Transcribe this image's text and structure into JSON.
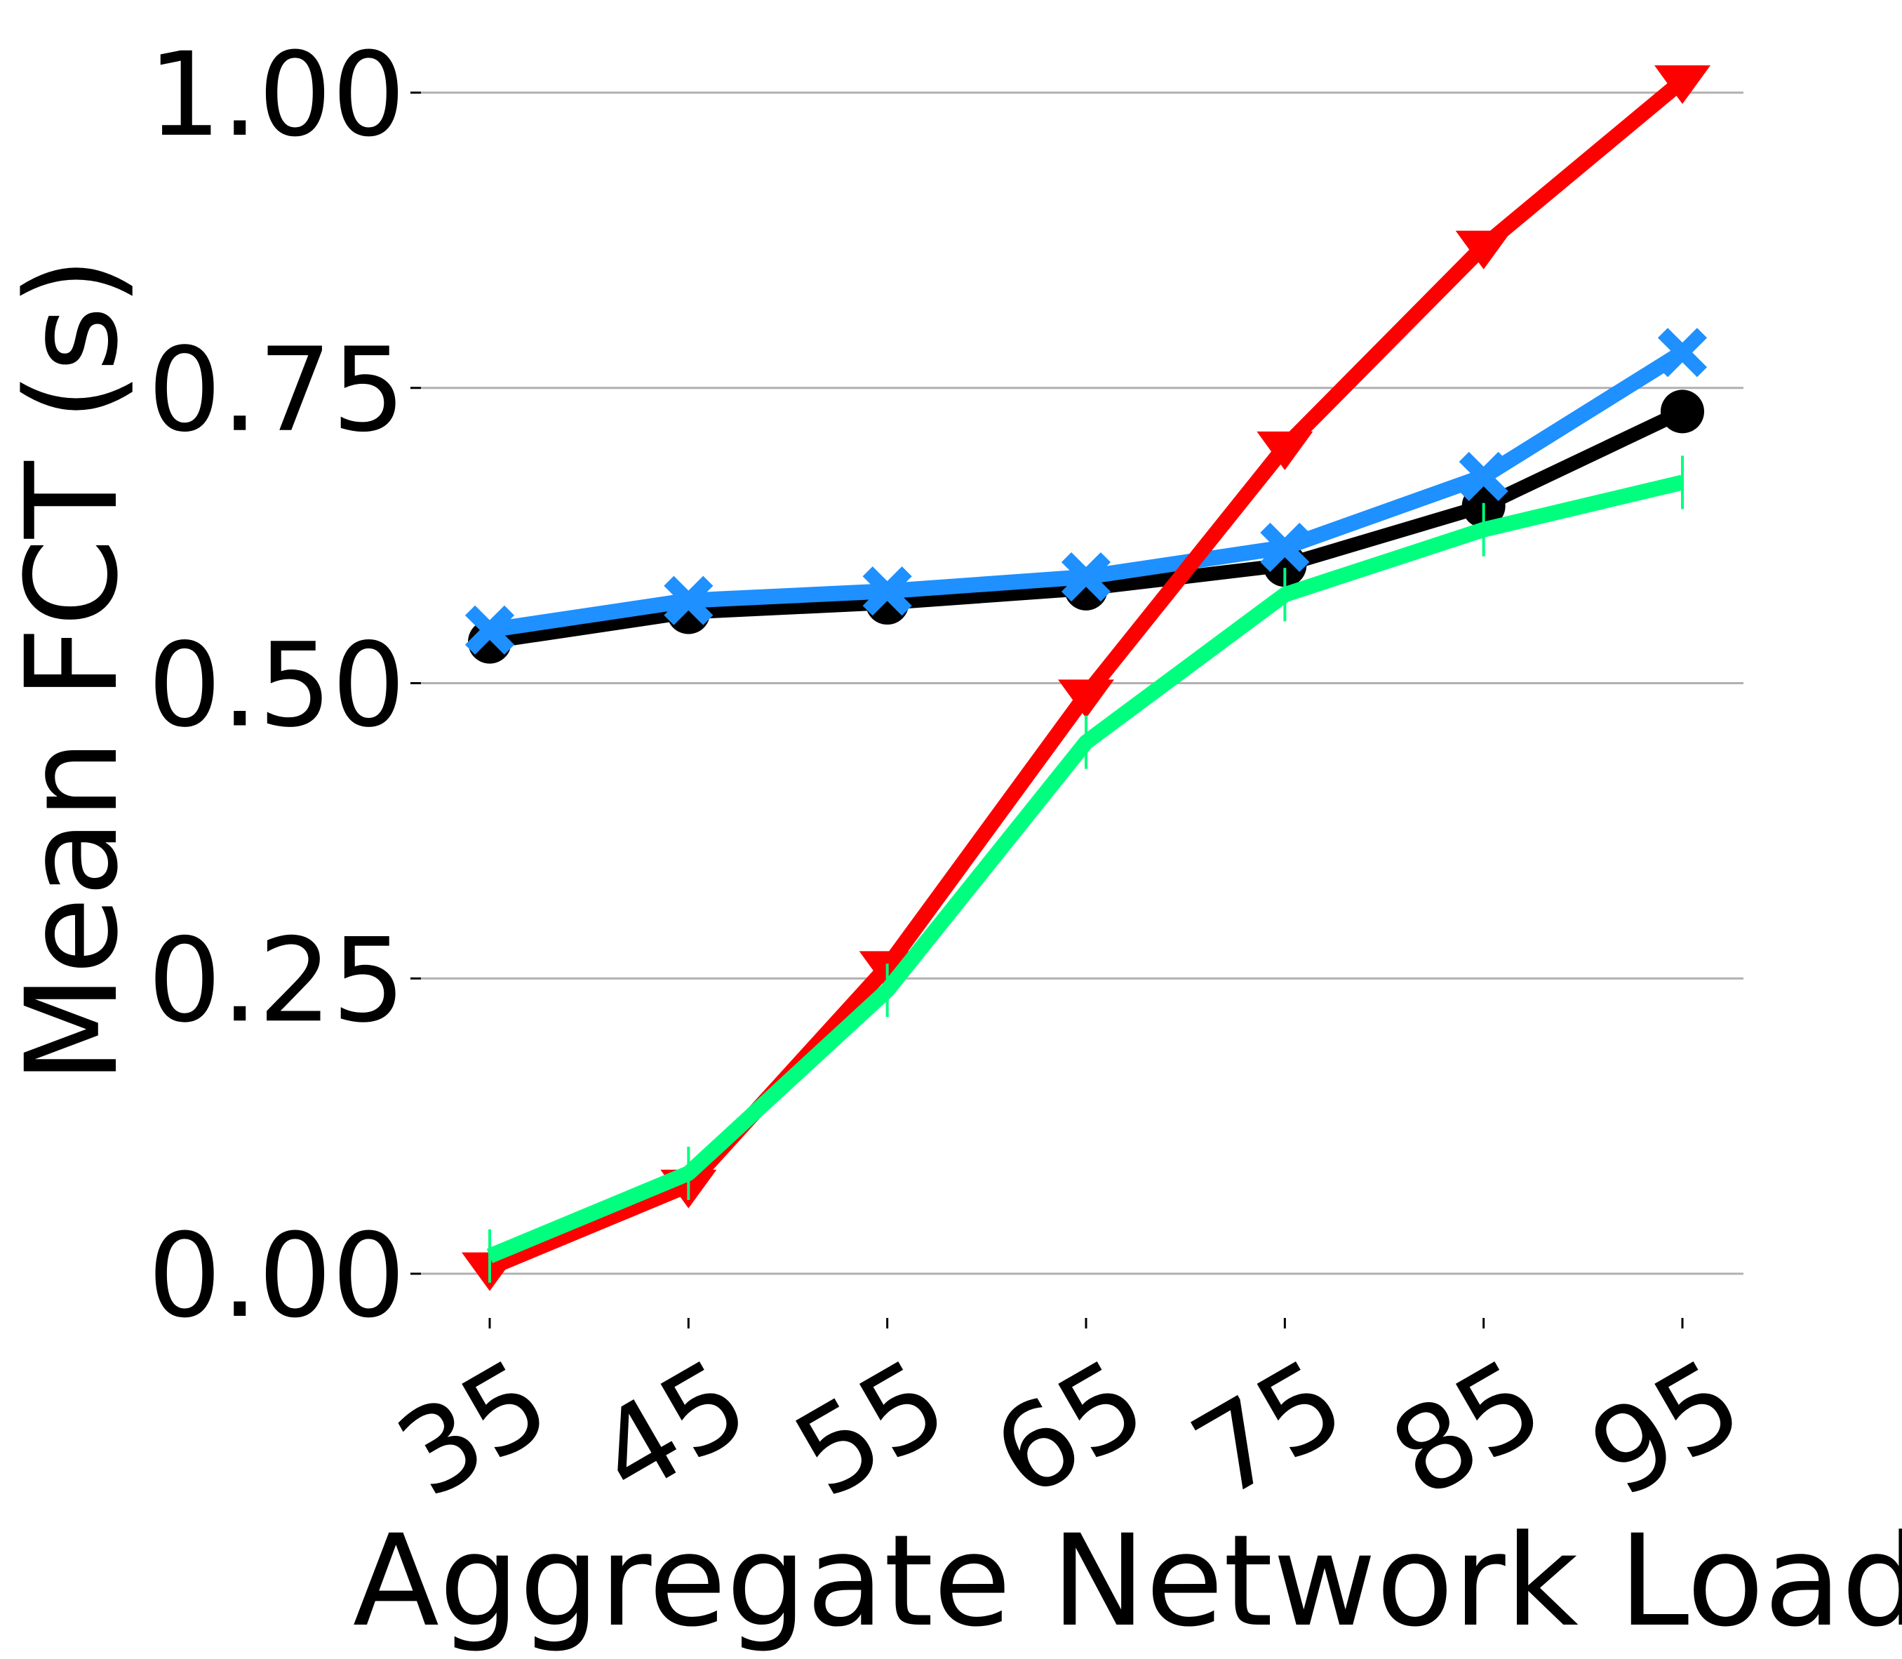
{
  "chart_data": {
    "type": "line",
    "title": "",
    "xlabel": "Aggregate Network Load %",
    "ylabel": "Mean FCT (s)",
    "categories": [
      "35",
      "45",
      "55",
      "65",
      "75",
      "85",
      "95"
    ],
    "ylim": [
      -0.03,
      1.03
    ],
    "yticks": [
      "0.00",
      "0.25",
      "0.50",
      "0.75",
      "1.00"
    ],
    "ytick_values": [
      0.0,
      0.25,
      0.5,
      0.75,
      1.0
    ],
    "grid": "horizontal",
    "legend": "none",
    "series": [
      {
        "color": "#000000",
        "marker": "circle",
        "values": [
          0.535,
          0.56,
          0.568,
          0.58,
          0.6,
          0.65,
          0.73
        ]
      },
      {
        "color": "#1e90ff",
        "marker": "x",
        "values": [
          0.545,
          0.57,
          0.578,
          0.59,
          0.615,
          0.675,
          0.78
        ]
      },
      {
        "color": "#ff0000",
        "marker": "triangle-down",
        "values": [
          0.005,
          0.075,
          0.26,
          0.49,
          0.7,
          0.87,
          1.01
        ]
      },
      {
        "color": "#00ff7f",
        "marker": "vline",
        "values": [
          0.015,
          0.085,
          0.24,
          0.45,
          0.575,
          0.63,
          0.67
        ]
      }
    ]
  }
}
